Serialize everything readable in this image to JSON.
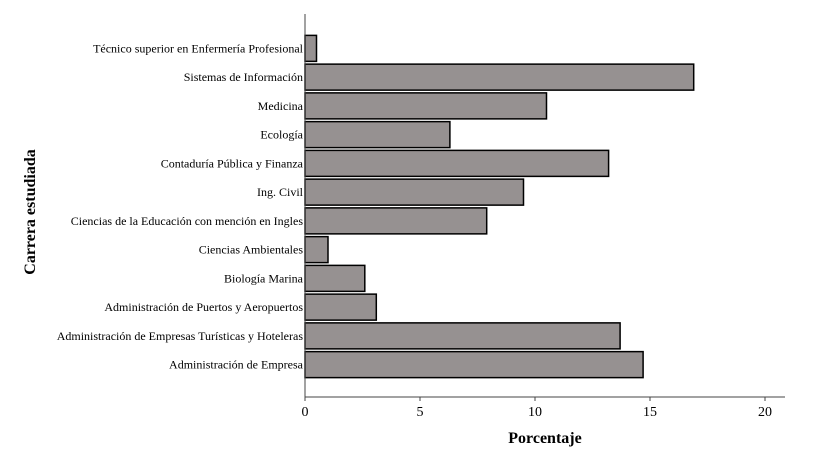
{
  "chart_data": {
    "type": "bar",
    "orientation": "horizontal",
    "categories": [
      "Técnico superior en Enfermería Profesional",
      "Sistemas de Información",
      "Medicina",
      "Ecología",
      "Contaduría Pública y Finanza",
      "Ing. Civil",
      "Ciencias de la Educación con mención en Ingles",
      "Ciencias Ambientales",
      "Biología Marina",
      "Administración de Puertos y Aeropuertos",
      "Administración de Empresas Turísticas y Hoteleras",
      "Administración de Empresa"
    ],
    "values": [
      0.5,
      16.9,
      10.5,
      6.3,
      13.2,
      9.5,
      7.9,
      1.0,
      2.6,
      3.1,
      13.7,
      14.7
    ],
    "xlabel": "Porcentaje",
    "ylabel": "Carrera estudiada",
    "xlim": [
      0,
      20
    ],
    "xticks": [
      0,
      5,
      10,
      15,
      20
    ],
    "grid": false,
    "bar_color": "#969191",
    "bar_edge_color": "#000000"
  }
}
